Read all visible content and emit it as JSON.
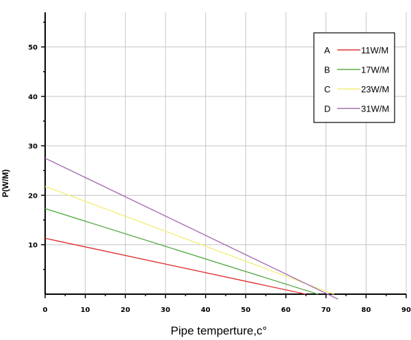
{
  "chart_data": {
    "type": "line",
    "title": "",
    "xlabel": "Pipe temperture,c°",
    "ylabel": "P(W/M)",
    "xlim": [
      0,
      90
    ],
    "ylim": [
      0,
      57
    ],
    "xticks": [
      0,
      10,
      20,
      30,
      40,
      50,
      60,
      70,
      80,
      90
    ],
    "yticks": [
      10,
      20,
      30,
      40,
      50
    ],
    "grid": true,
    "legend_position": "top-right",
    "series": [
      {
        "letter": "A",
        "name": "11W/M",
        "color": "#dd3333",
        "x": [
          0,
          65
        ],
        "y": [
          11.3,
          0
        ]
      },
      {
        "letter": "B",
        "name": "17W/M",
        "color": "#55aa44",
        "x": [
          0,
          68
        ],
        "y": [
          17.3,
          0
        ]
      },
      {
        "letter": "C",
        "name": "23W/M",
        "color": "#f2ee7a",
        "x": [
          0,
          72
        ],
        "y": [
          21.8,
          0
        ]
      },
      {
        "letter": "D",
        "name": "31W/M",
        "color": "#a66bb0",
        "x": [
          0,
          73
        ],
        "y": [
          27.5,
          -1
        ]
      }
    ]
  }
}
